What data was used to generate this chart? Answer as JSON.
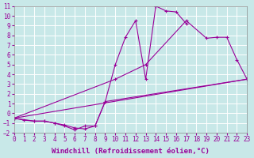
{
  "background_color": "#c8e8e8",
  "grid_color": "#ffffff",
  "line_color": "#990099",
  "marker": "+",
  "markersize": 3,
  "linewidth": 0.8,
  "xlabel": "Windchill (Refroidissement éolien,°C)",
  "xlabel_fontsize": 6.5,
  "tick_fontsize": 5.5,
  "xlim": [
    0,
    23
  ],
  "ylim": [
    -2,
    11
  ],
  "xticks": [
    0,
    1,
    2,
    3,
    4,
    5,
    6,
    7,
    8,
    9,
    10,
    11,
    12,
    13,
    14,
    15,
    16,
    17,
    18,
    19,
    20,
    21,
    22,
    23
  ],
  "yticks": [
    -2,
    -1,
    0,
    1,
    2,
    3,
    4,
    5,
    6,
    7,
    8,
    9,
    10,
    11
  ],
  "series1_x": [
    0,
    2,
    3,
    4,
    5,
    6,
    7,
    8,
    9,
    10,
    11,
    12,
    13,
    14,
    15,
    16,
    17
  ],
  "series1_y": [
    -0.5,
    -0.8,
    -0.8,
    -1.0,
    -1.3,
    -1.7,
    -1.3,
    -1.3,
    1.2,
    5.0,
    7.8,
    9.5,
    3.5,
    11.0,
    10.5,
    10.4,
    9.2
  ],
  "series2_x": [
    0,
    1,
    2,
    3,
    4,
    5,
    6,
    7,
    8,
    9,
    23
  ],
  "series2_y": [
    -0.5,
    -0.7,
    -0.8,
    -0.8,
    -1.0,
    -1.2,
    -1.5,
    -1.6,
    -1.3,
    1.2,
    3.5
  ],
  "series3_x": [
    0,
    10,
    13,
    17,
    19,
    20,
    21,
    22,
    23
  ],
  "series3_y": [
    -0.5,
    3.5,
    5.0,
    9.5,
    7.7,
    7.8,
    7.8,
    5.5,
    3.5
  ],
  "series4_x": [
    0,
    23
  ],
  "series4_y": [
    -0.5,
    3.5
  ]
}
